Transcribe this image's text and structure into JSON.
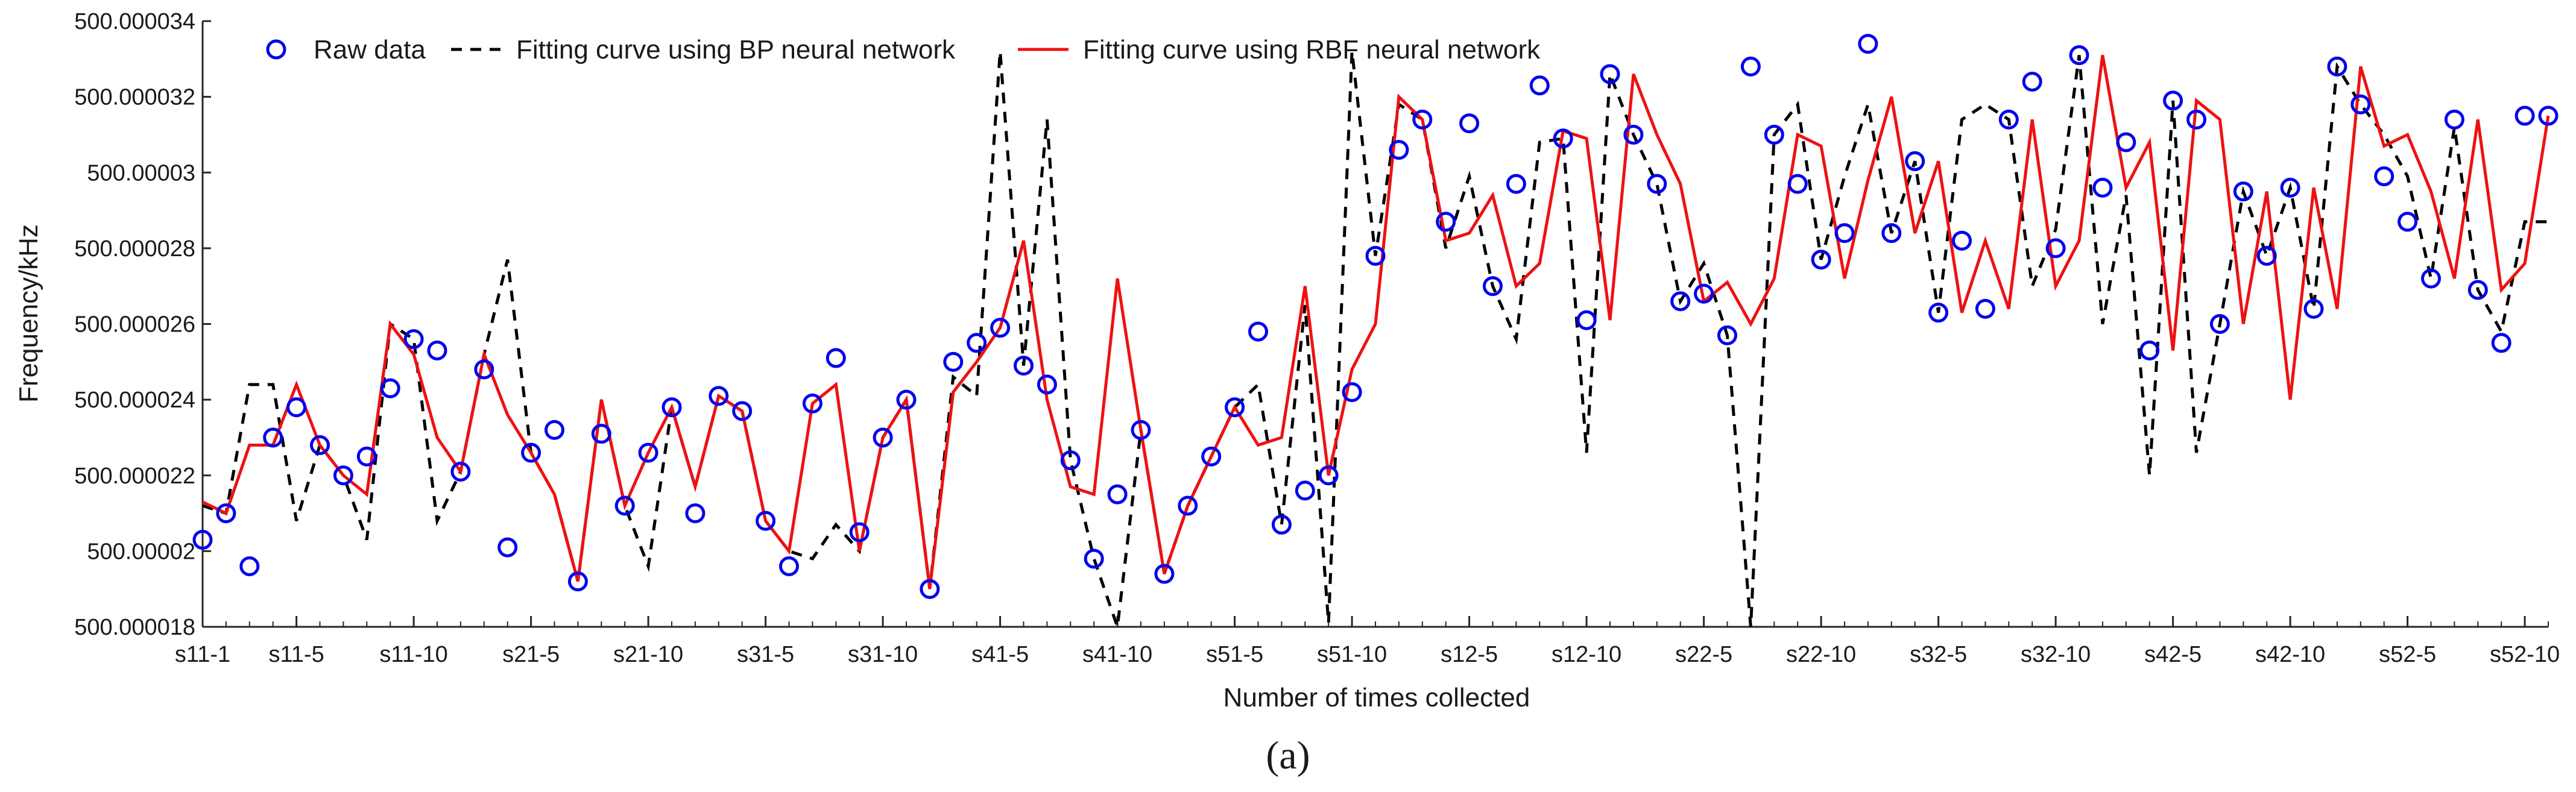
{
  "colors": {
    "raw": "#0000ee",
    "bp": "#000000",
    "rbf": "#ee1111",
    "axis": "#262626"
  },
  "caption": "(a)",
  "chart_data": {
    "type": "line",
    "title": "",
    "xlabel": "Number of times collected",
    "ylabel": "Frequency/kHz",
    "ylim": [
      500.000018,
      500.000034
    ],
    "xlim": [
      1,
      101
    ],
    "yticks": [
      {
        "value": 500.000018,
        "label": "500.000018"
      },
      {
        "value": 500.00002,
        "label": "500.00002"
      },
      {
        "value": 500.000022,
        "label": "500.000022"
      },
      {
        "value": 500.000024,
        "label": "500.000024"
      },
      {
        "value": 500.000026,
        "label": "500.000026"
      },
      {
        "value": 500.000028,
        "label": "500.000028"
      },
      {
        "value": 500.00003,
        "label": "500.00003"
      },
      {
        "value": 500.000032,
        "label": "500.000032"
      },
      {
        "value": 500.000034,
        "label": "500.000034"
      }
    ],
    "xticks": [
      {
        "x": 1,
        "label": "s11-1"
      },
      {
        "x": 5,
        "label": "s11-5"
      },
      {
        "x": 10,
        "label": "s11-10"
      },
      {
        "x": 15,
        "label": "s21-5"
      },
      {
        "x": 20,
        "label": "s21-10"
      },
      {
        "x": 25,
        "label": "s31-5"
      },
      {
        "x": 30,
        "label": "s31-10"
      },
      {
        "x": 35,
        "label": "s41-5"
      },
      {
        "x": 40,
        "label": "s41-10"
      },
      {
        "x": 45,
        "label": "s51-5"
      },
      {
        "x": 50,
        "label": "s51-10"
      },
      {
        "x": 55,
        "label": "s12-5"
      },
      {
        "x": 60,
        "label": "s12-10"
      },
      {
        "x": 65,
        "label": "s22-5"
      },
      {
        "x": 70,
        "label": "s22-10"
      },
      {
        "x": 75,
        "label": "s32-5"
      },
      {
        "x": 80,
        "label": "s32-10"
      },
      {
        "x": 85,
        "label": "s42-5"
      },
      {
        "x": 90,
        "label": "s42-10"
      },
      {
        "x": 95,
        "label": "s52-5"
      },
      {
        "x": 100,
        "label": "s52-10"
      }
    ],
    "legend": {
      "position": "top-left",
      "entries": [
        {
          "key": "raw",
          "label": "Raw data"
        },
        {
          "key": "bp",
          "label": "Fitting curve using BP neural network"
        },
        {
          "key": "rbf",
          "label": "Fitting curve using RBF neural network"
        }
      ]
    },
    "series": [
      {
        "key": "raw",
        "name": "Raw data",
        "style": "markers",
        "x": [
          1,
          2,
          3,
          4,
          5,
          6,
          7,
          8,
          9,
          10,
          11,
          12,
          13,
          14,
          15,
          16,
          17,
          18,
          19,
          20,
          21,
          22,
          23,
          24,
          25,
          26,
          27,
          28,
          29,
          30,
          31,
          32,
          33,
          34,
          35,
          36,
          37,
          38,
          39,
          40,
          41,
          42,
          43,
          44,
          45,
          46,
          47,
          48,
          49,
          50,
          51,
          52,
          53,
          54,
          55,
          56,
          57,
          58,
          59,
          60,
          61,
          62,
          63,
          64,
          65,
          66,
          67,
          68,
          69,
          70,
          71,
          72,
          73,
          74,
          75,
          76,
          77,
          78,
          79,
          80,
          81,
          82,
          83,
          84,
          85,
          86,
          87,
          88,
          89,
          90,
          91,
          92,
          93,
          94,
          95,
          96,
          97,
          98,
          99,
          100,
          101
        ],
        "values": [
          500.0000203,
          500.000021,
          500.0000196,
          500.000023,
          500.0000238,
          500.0000228,
          500.000022,
          500.0000225,
          500.0000243,
          500.0000256,
          500.0000253,
          500.0000221,
          500.0000248,
          500.0000201,
          500.0000226,
          500.0000232,
          500.0000192,
          500.0000231,
          500.0000212,
          500.0000226,
          500.0000238,
          500.000021,
          500.0000241,
          500.0000237,
          500.0000208,
          500.0000196,
          500.0000239,
          500.0000251,
          500.0000205,
          500.000023,
          500.000024,
          500.000019,
          500.000025,
          500.0000255,
          500.0000259,
          500.0000249,
          500.0000244,
          500.0000224,
          500.0000198,
          500.0000215,
          500.0000232,
          500.0000194,
          500.0000212,
          500.0000225,
          500.0000238,
          500.0000258,
          500.0000207,
          500.0000216,
          500.000022,
          500.0000242,
          500.0000278,
          500.0000306,
          500.0000314,
          500.0000287,
          500.0000313,
          500.000027,
          500.0000297,
          500.0000323,
          500.0000309,
          500.0000261,
          500.0000326,
          500.000031,
          500.0000297,
          500.0000266,
          500.0000268,
          500.0000257,
          500.0000328,
          500.000031,
          500.0000297,
          500.0000277,
          500.0000284,
          500.0000334,
          500.0000284,
          500.0000303,
          500.0000263,
          500.0000282,
          500.0000264,
          500.0000314,
          500.0000324,
          500.000028,
          500.0000331,
          500.0000296,
          500.0000308,
          500.0000253,
          500.0000319,
          500.0000314,
          500.000026,
          500.0000295,
          500.0000278,
          500.0000296,
          500.0000264,
          500.0000328,
          500.0000318,
          500.0000299,
          500.0000287,
          500.0000272,
          500.0000314,
          500.0000269,
          500.0000255,
          500.0000315,
          500.0000315
        ]
      },
      {
        "key": "bp",
        "name": "Fitting curve using BP neural network",
        "style": "dashed",
        "x": [
          1,
          2,
          3,
          4,
          5,
          6,
          7,
          8,
          9,
          10,
          11,
          12,
          13,
          14,
          15,
          16,
          17,
          18,
          19,
          20,
          21,
          22,
          23,
          24,
          25,
          26,
          27,
          28,
          29,
          30,
          31,
          32,
          33,
          34,
          35,
          36,
          37,
          38,
          39,
          40,
          41,
          42,
          43,
          44,
          45,
          46,
          47,
          48,
          49,
          50,
          51,
          52,
          53,
          54,
          55,
          56,
          57,
          58,
          59,
          60,
          61,
          62,
          63,
          64,
          65,
          66,
          67,
          68,
          69,
          70,
          71,
          72,
          73,
          74,
          75,
          76,
          77,
          78,
          79,
          80,
          81,
          82,
          83,
          84,
          85,
          86,
          87,
          88,
          89,
          90,
          91,
          92,
          93,
          94,
          95,
          96,
          97,
          98,
          99,
          100,
          101
        ],
        "values": [
          500.0000212,
          500.000021,
          500.0000244,
          500.0000244,
          500.0000208,
          500.0000228,
          500.000022,
          500.0000203,
          500.000026,
          500.0000256,
          500.0000208,
          500.0000221,
          500.0000252,
          500.0000277,
          500.0000226,
          500.0000215,
          500.0000192,
          500.000024,
          500.0000212,
          500.0000196,
          500.0000238,
          500.0000217,
          500.0000241,
          500.0000237,
          500.0000208,
          500.00002,
          500.0000198,
          500.0000207,
          500.00002,
          500.000023,
          500.000024,
          500.000019,
          500.0000246,
          500.0000241,
          500.0000332,
          500.0000249,
          500.0000314,
          500.0000224,
          500.0000198,
          500.000018,
          500.0000232,
          500.0000194,
          500.0000212,
          500.0000225,
          500.0000238,
          500.0000244,
          500.0000207,
          500.0000265,
          500.0000181,
          500.0000332,
          500.0000278,
          500.0000318,
          500.0000314,
          500.000028,
          500.0000299,
          500.000027,
          500.0000256,
          500.0000308,
          500.0000309,
          500.0000226,
          500.0000326,
          500.000031,
          500.0000297,
          500.0000266,
          500.0000276,
          500.0000257,
          500.000018,
          500.000031,
          500.0000318,
          500.0000277,
          500.0000299,
          500.0000318,
          500.0000284,
          500.0000303,
          500.0000263,
          500.0000314,
          500.0000318,
          500.0000314,
          500.000027,
          500.0000285,
          500.0000331,
          500.000026,
          500.0000294,
          500.000022,
          500.0000319,
          500.0000226,
          500.000026,
          500.0000295,
          500.0000278,
          500.0000296,
          500.0000264,
          500.0000328,
          500.0000318,
          500.000031,
          500.0000299,
          500.0000272,
          500.0000312,
          500.0000269,
          500.0000258,
          500.0000287,
          500.0000287
        ]
      },
      {
        "key": "rbf",
        "name": "Fitting curve using RBF neural network",
        "style": "solid",
        "x": [
          1,
          2,
          3,
          4,
          5,
          6,
          7,
          8,
          9,
          10,
          11,
          12,
          13,
          14,
          15,
          16,
          17,
          18,
          19,
          20,
          21,
          22,
          23,
          24,
          25,
          26,
          27,
          28,
          29,
          30,
          31,
          32,
          33,
          34,
          35,
          36,
          37,
          38,
          39,
          40,
          41,
          42,
          43,
          44,
          45,
          46,
          47,
          48,
          49,
          50,
          51,
          52,
          53,
          54,
          55,
          56,
          57,
          58,
          59,
          60,
          61,
          62,
          63,
          64,
          65,
          66,
          67,
          68,
          69,
          70,
          71,
          72,
          73,
          74,
          75,
          76,
          77,
          78,
          79,
          80,
          81,
          82,
          83,
          84,
          85,
          86,
          87,
          88,
          89,
          90,
          91,
          92,
          93,
          94,
          95,
          96,
          97,
          98,
          99,
          100,
          101
        ],
        "values": [
          500.0000213,
          500.000021,
          500.0000228,
          500.0000228,
          500.0000244,
          500.0000228,
          500.000022,
          500.0000215,
          500.000026,
          500.0000252,
          500.000023,
          500.0000221,
          500.0000252,
          500.0000236,
          500.0000226,
          500.0000215,
          500.0000192,
          500.000024,
          500.0000212,
          500.0000226,
          500.0000238,
          500.0000217,
          500.0000241,
          500.0000237,
          500.0000208,
          500.00002,
          500.0000239,
          500.0000244,
          500.00002,
          500.000023,
          500.000024,
          500.000019,
          500.0000242,
          500.000025,
          500.0000259,
          500.0000282,
          500.000024,
          500.0000217,
          500.0000215,
          500.0000272,
          500.0000232,
          500.0000194,
          500.0000212,
          500.0000225,
          500.0000238,
          500.0000228,
          500.000023,
          500.000027,
          500.000022,
          500.0000248,
          500.000026,
          500.000032,
          500.0000314,
          500.0000282,
          500.0000284,
          500.0000294,
          500.000027,
          500.0000276,
          500.0000311,
          500.0000309,
          500.0000261,
          500.0000326,
          500.000031,
          500.0000297,
          500.0000266,
          500.0000271,
          500.000026,
          500.0000272,
          500.000031,
          500.0000307,
          500.0000272,
          500.0000298,
          500.000032,
          500.0000284,
          500.0000303,
          500.0000263,
          500.0000282,
          500.0000264,
          500.0000314,
          500.000027,
          500.0000282,
          500.0000331,
          500.0000296,
          500.0000308,
          500.0000253,
          500.0000319,
          500.0000314,
          500.000026,
          500.0000295,
          500.000024,
          500.0000296,
          500.0000264,
          500.0000328,
          500.0000307,
          500.000031,
          500.0000295,
          500.0000272,
          500.0000314,
          500.0000269,
          500.0000276,
          500.0000315
        ]
      }
    ]
  }
}
